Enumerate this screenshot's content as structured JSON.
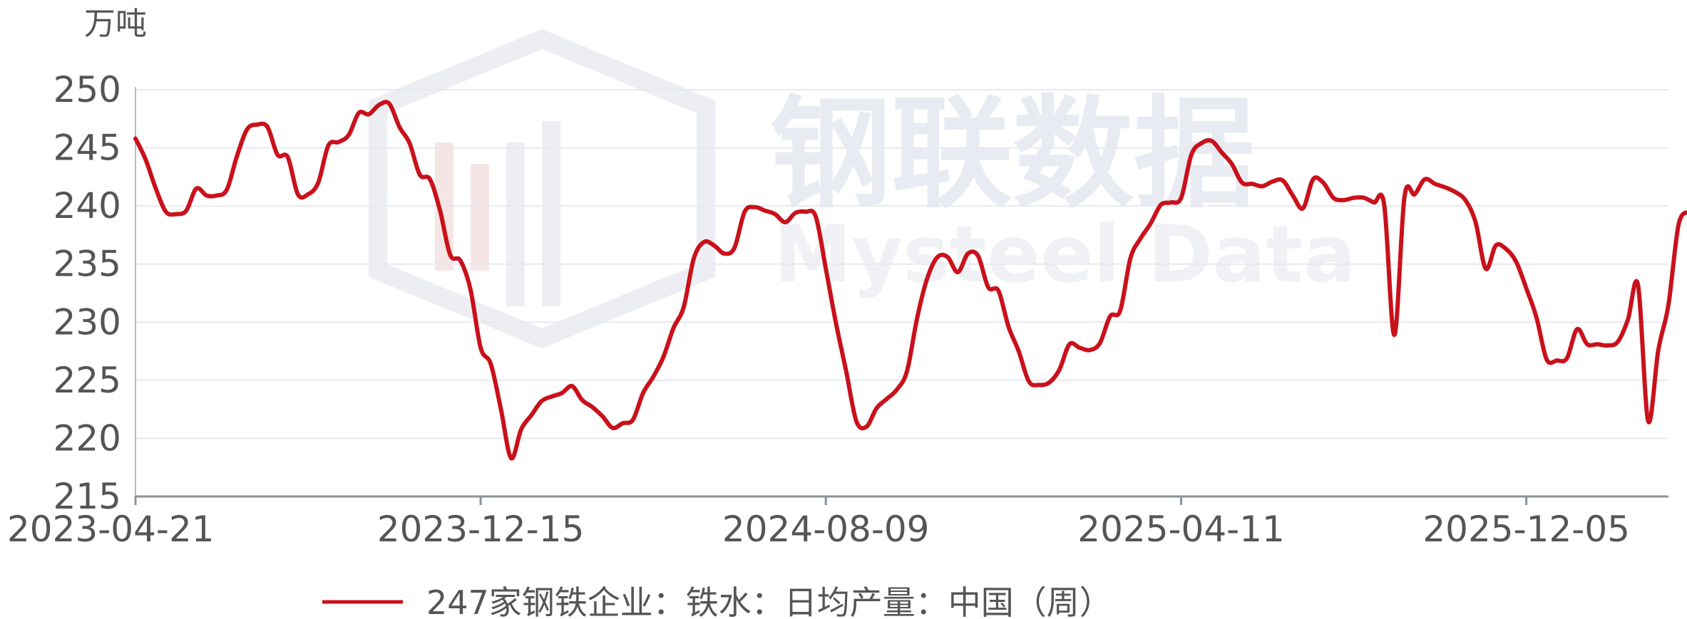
{
  "chart_data": {
    "type": "line",
    "unit": "万吨",
    "watermark": {
      "cn": "钢联数据",
      "en": "Mysteel Data"
    },
    "ylim": [
      215,
      250
    ],
    "yticks": [
      250,
      245,
      240,
      235,
      230,
      225,
      220,
      215
    ],
    "ytick_labels": [
      "250",
      "245",
      "240",
      "235",
      "230",
      "225",
      "220",
      "215"
    ],
    "xlim": [
      "2023-04-21",
      "2026-03-13"
    ],
    "xticks": [
      "2023-04-21",
      "2023-12-15",
      "2024-08-09",
      "2025-04-11",
      "2025-12-05"
    ],
    "xtick_labels": [
      "2023-04-21",
      "2023-12-15",
      "2024-08-09",
      "2025-04-11",
      "2025-12-05"
    ],
    "grid": true,
    "legend": {
      "position": "bottom",
      "label": "247家钢铁企业：铁水：日均产量：中国（周）"
    },
    "series": [
      {
        "name": "247家钢铁企业：铁水：日均产量：中国（周）",
        "color": "#c9111b",
        "points": [
          [
            "2023-04-21",
            245.8
          ],
          [
            "2023-04-28",
            244.0
          ],
          [
            "2023-05-05",
            241.5
          ],
          [
            "2023-05-12",
            239.5
          ],
          [
            "2023-05-19",
            239.3
          ],
          [
            "2023-05-26",
            239.6
          ],
          [
            "2023-06-02",
            241.5
          ],
          [
            "2023-06-09",
            240.9
          ],
          [
            "2023-06-16",
            240.9
          ],
          [
            "2023-06-23",
            241.4
          ],
          [
            "2023-06-30",
            244.3
          ],
          [
            "2023-07-07",
            246.6
          ],
          [
            "2023-07-14",
            247.0
          ],
          [
            "2023-07-21",
            246.8
          ],
          [
            "2023-07-28",
            244.4
          ],
          [
            "2023-08-04",
            244.2
          ],
          [
            "2023-08-11",
            241.0
          ],
          [
            "2023-08-18",
            241.0
          ],
          [
            "2023-08-25",
            242.0
          ],
          [
            "2023-09-01",
            245.2
          ],
          [
            "2023-09-08",
            245.5
          ],
          [
            "2023-09-15",
            246.1
          ],
          [
            "2023-09-22",
            248.0
          ],
          [
            "2023-09-29",
            247.9
          ],
          [
            "2023-10-06",
            248.7
          ],
          [
            "2023-10-13",
            248.8
          ],
          [
            "2023-10-20",
            246.8
          ],
          [
            "2023-10-27",
            245.4
          ],
          [
            "2023-11-03",
            242.7
          ],
          [
            "2023-11-10",
            242.3
          ],
          [
            "2023-11-17",
            239.6
          ],
          [
            "2023-11-24",
            235.8
          ],
          [
            "2023-12-01",
            235.3
          ],
          [
            "2023-12-08",
            232.8
          ],
          [
            "2023-12-15",
            227.8
          ],
          [
            "2023-12-22",
            226.4
          ],
          [
            "2023-12-29",
            222.5
          ],
          [
            "2024-01-05",
            218.3
          ],
          [
            "2024-01-12",
            220.8
          ],
          [
            "2024-01-19",
            222.0
          ],
          [
            "2024-01-26",
            223.2
          ],
          [
            "2024-02-02",
            223.6
          ],
          [
            "2024-02-09",
            223.9
          ],
          [
            "2024-02-16",
            224.5
          ],
          [
            "2024-02-23",
            223.3
          ],
          [
            "2024-03-01",
            222.7
          ],
          [
            "2024-03-08",
            221.9
          ],
          [
            "2024-03-15",
            220.9
          ],
          [
            "2024-03-22",
            221.3
          ],
          [
            "2024-03-29",
            221.6
          ],
          [
            "2024-04-05",
            223.9
          ],
          [
            "2024-04-12",
            225.3
          ],
          [
            "2024-04-19",
            227.0
          ],
          [
            "2024-04-26",
            229.5
          ],
          [
            "2024-05-03",
            231.3
          ],
          [
            "2024-05-10",
            235.5
          ],
          [
            "2024-05-17",
            236.9
          ],
          [
            "2024-05-24",
            236.6
          ],
          [
            "2024-05-31",
            235.9
          ],
          [
            "2024-06-07",
            236.4
          ],
          [
            "2024-06-14",
            239.5
          ],
          [
            "2024-06-21",
            239.9
          ],
          [
            "2024-06-28",
            239.6
          ],
          [
            "2024-07-05",
            239.3
          ],
          [
            "2024-07-12",
            238.6
          ],
          [
            "2024-07-19",
            239.4
          ],
          [
            "2024-07-26",
            239.5
          ],
          [
            "2024-08-02",
            239.1
          ],
          [
            "2024-08-09",
            234.6
          ],
          [
            "2024-08-16",
            229.9
          ],
          [
            "2024-08-23",
            225.8
          ],
          [
            "2024-08-30",
            221.5
          ],
          [
            "2024-09-06",
            221.0
          ],
          [
            "2024-09-13",
            222.6
          ],
          [
            "2024-09-20",
            223.4
          ],
          [
            "2024-09-27",
            224.2
          ],
          [
            "2024-10-04",
            225.8
          ],
          [
            "2024-10-11",
            230.4
          ],
          [
            "2024-10-18",
            233.8
          ],
          [
            "2024-10-25",
            235.6
          ],
          [
            "2024-11-01",
            235.6
          ],
          [
            "2024-11-08",
            234.3
          ],
          [
            "2024-11-15",
            235.9
          ],
          [
            "2024-11-22",
            235.7
          ],
          [
            "2024-11-29",
            233.0
          ],
          [
            "2024-12-06",
            232.7
          ],
          [
            "2024-12-13",
            229.6
          ],
          [
            "2024-12-20",
            227.5
          ],
          [
            "2024-12-27",
            224.9
          ],
          [
            "2025-01-03",
            224.6
          ],
          [
            "2025-01-10",
            224.8
          ],
          [
            "2025-01-17",
            225.9
          ],
          [
            "2025-01-24",
            228.1
          ],
          [
            "2025-01-31",
            227.8
          ],
          [
            "2025-02-07",
            227.6
          ],
          [
            "2025-02-14",
            228.2
          ],
          [
            "2025-02-21",
            230.5
          ],
          [
            "2025-02-28",
            231.0
          ],
          [
            "2025-03-07",
            235.5
          ],
          [
            "2025-03-14",
            237.2
          ],
          [
            "2025-03-21",
            238.5
          ],
          [
            "2025-03-28",
            240.1
          ],
          [
            "2025-04-04",
            240.3
          ],
          [
            "2025-04-11",
            240.7
          ],
          [
            "2025-04-18",
            244.4
          ],
          [
            "2025-04-25",
            245.4
          ],
          [
            "2025-05-02",
            245.6
          ],
          [
            "2025-05-09",
            244.6
          ],
          [
            "2025-05-16",
            243.6
          ],
          [
            "2025-05-23",
            242.0
          ],
          [
            "2025-05-30",
            241.9
          ],
          [
            "2025-06-06",
            241.7
          ],
          [
            "2025-06-13",
            242.1
          ],
          [
            "2025-06-20",
            242.2
          ],
          [
            "2025-06-27",
            240.9
          ],
          [
            "2025-07-04",
            239.8
          ],
          [
            "2025-07-11",
            242.3
          ],
          [
            "2025-07-18",
            242.0
          ],
          [
            "2025-07-25",
            240.7
          ],
          [
            "2025-08-01",
            240.5
          ],
          [
            "2025-08-08",
            240.7
          ],
          [
            "2025-08-15",
            240.7
          ],
          [
            "2025-08-22",
            240.3
          ],
          [
            "2025-08-29",
            240.1
          ],
          [
            "2025-09-05",
            228.9
          ],
          [
            "2025-09-12",
            240.8
          ],
          [
            "2025-09-19",
            241.0
          ],
          [
            "2025-09-26",
            242.3
          ],
          [
            "2025-10-03",
            241.9
          ],
          [
            "2025-10-10",
            241.6
          ],
          [
            "2025-10-17",
            241.2
          ],
          [
            "2025-10-24",
            240.5
          ],
          [
            "2025-10-31",
            238.6
          ],
          [
            "2025-11-07",
            234.6
          ],
          [
            "2025-11-14",
            236.6
          ],
          [
            "2025-11-21",
            236.3
          ],
          [
            "2025-11-28",
            235.2
          ],
          [
            "2025-12-05",
            232.9
          ],
          [
            "2025-12-12",
            230.4
          ],
          [
            "2025-12-19",
            226.8
          ],
          [
            "2025-12-26",
            226.7
          ],
          [
            "2026-01-02",
            226.9
          ],
          [
            "2026-01-09",
            229.4
          ],
          [
            "2026-01-16",
            228.1
          ],
          [
            "2026-01-23",
            228.1
          ],
          [
            "2026-01-30",
            228.0
          ],
          [
            "2026-02-06",
            228.3
          ],
          [
            "2026-02-13",
            230.2
          ],
          [
            "2026-02-20",
            233.2
          ],
          [
            "2026-02-27",
            221.5
          ],
          [
            "2026-03-06",
            227.6
          ],
          [
            "2026-03-13",
            231.5
          ],
          [
            "2026-03-20",
            238.4
          ],
          [
            "2026-03-27",
            239.5
          ]
        ]
      }
    ]
  }
}
